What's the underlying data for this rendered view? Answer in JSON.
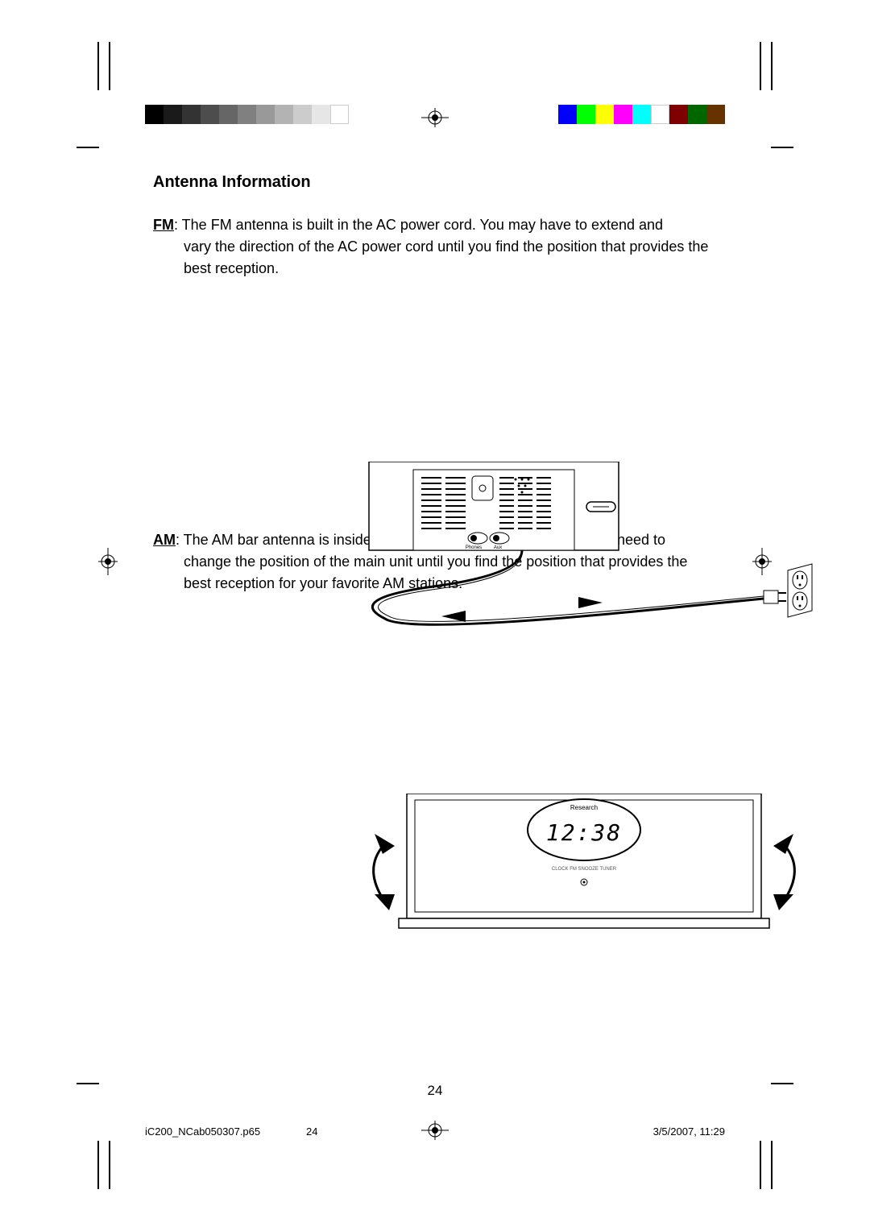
{
  "colorbar_left": [
    "#000000",
    "#1a1a1a",
    "#333333",
    "#4d4d4d",
    "#666666",
    "#808080",
    "#999999",
    "#b3b3b3",
    "#cccccc",
    "#e6e6e6",
    "#ffffff"
  ],
  "colorbar_right": [
    "#0000ff",
    "#00ff00",
    "#ffff00",
    "#ff00ff",
    "#00ffff",
    "#ffffff",
    "#7f0000",
    "#006600",
    "#663300"
  ],
  "heading": "Antenna Information",
  "fm": {
    "label": "FM",
    "text_first": ": The FM antenna is built in the AC power cord. You may have to extend and",
    "text_rest": "vary the direction of the AC power cord until you find the position that provides the best reception."
  },
  "am": {
    "label": "AM",
    "text_first": ": The AM bar antenna is inside the cabinet of the main unit. You may need to",
    "text_rest": "change the position of the main unit until you find the position that provides the best reception for your favorite AM stations."
  },
  "figure1": {
    "phones_label": "Phones",
    "aux_label": "Aux"
  },
  "figure2": {
    "brand": "Research",
    "time": "12:38"
  },
  "page_number": "24",
  "footer": {
    "file": "iC200_NCab050307.p65",
    "page": "24",
    "datetime": "3/5/2007, 11:29"
  }
}
